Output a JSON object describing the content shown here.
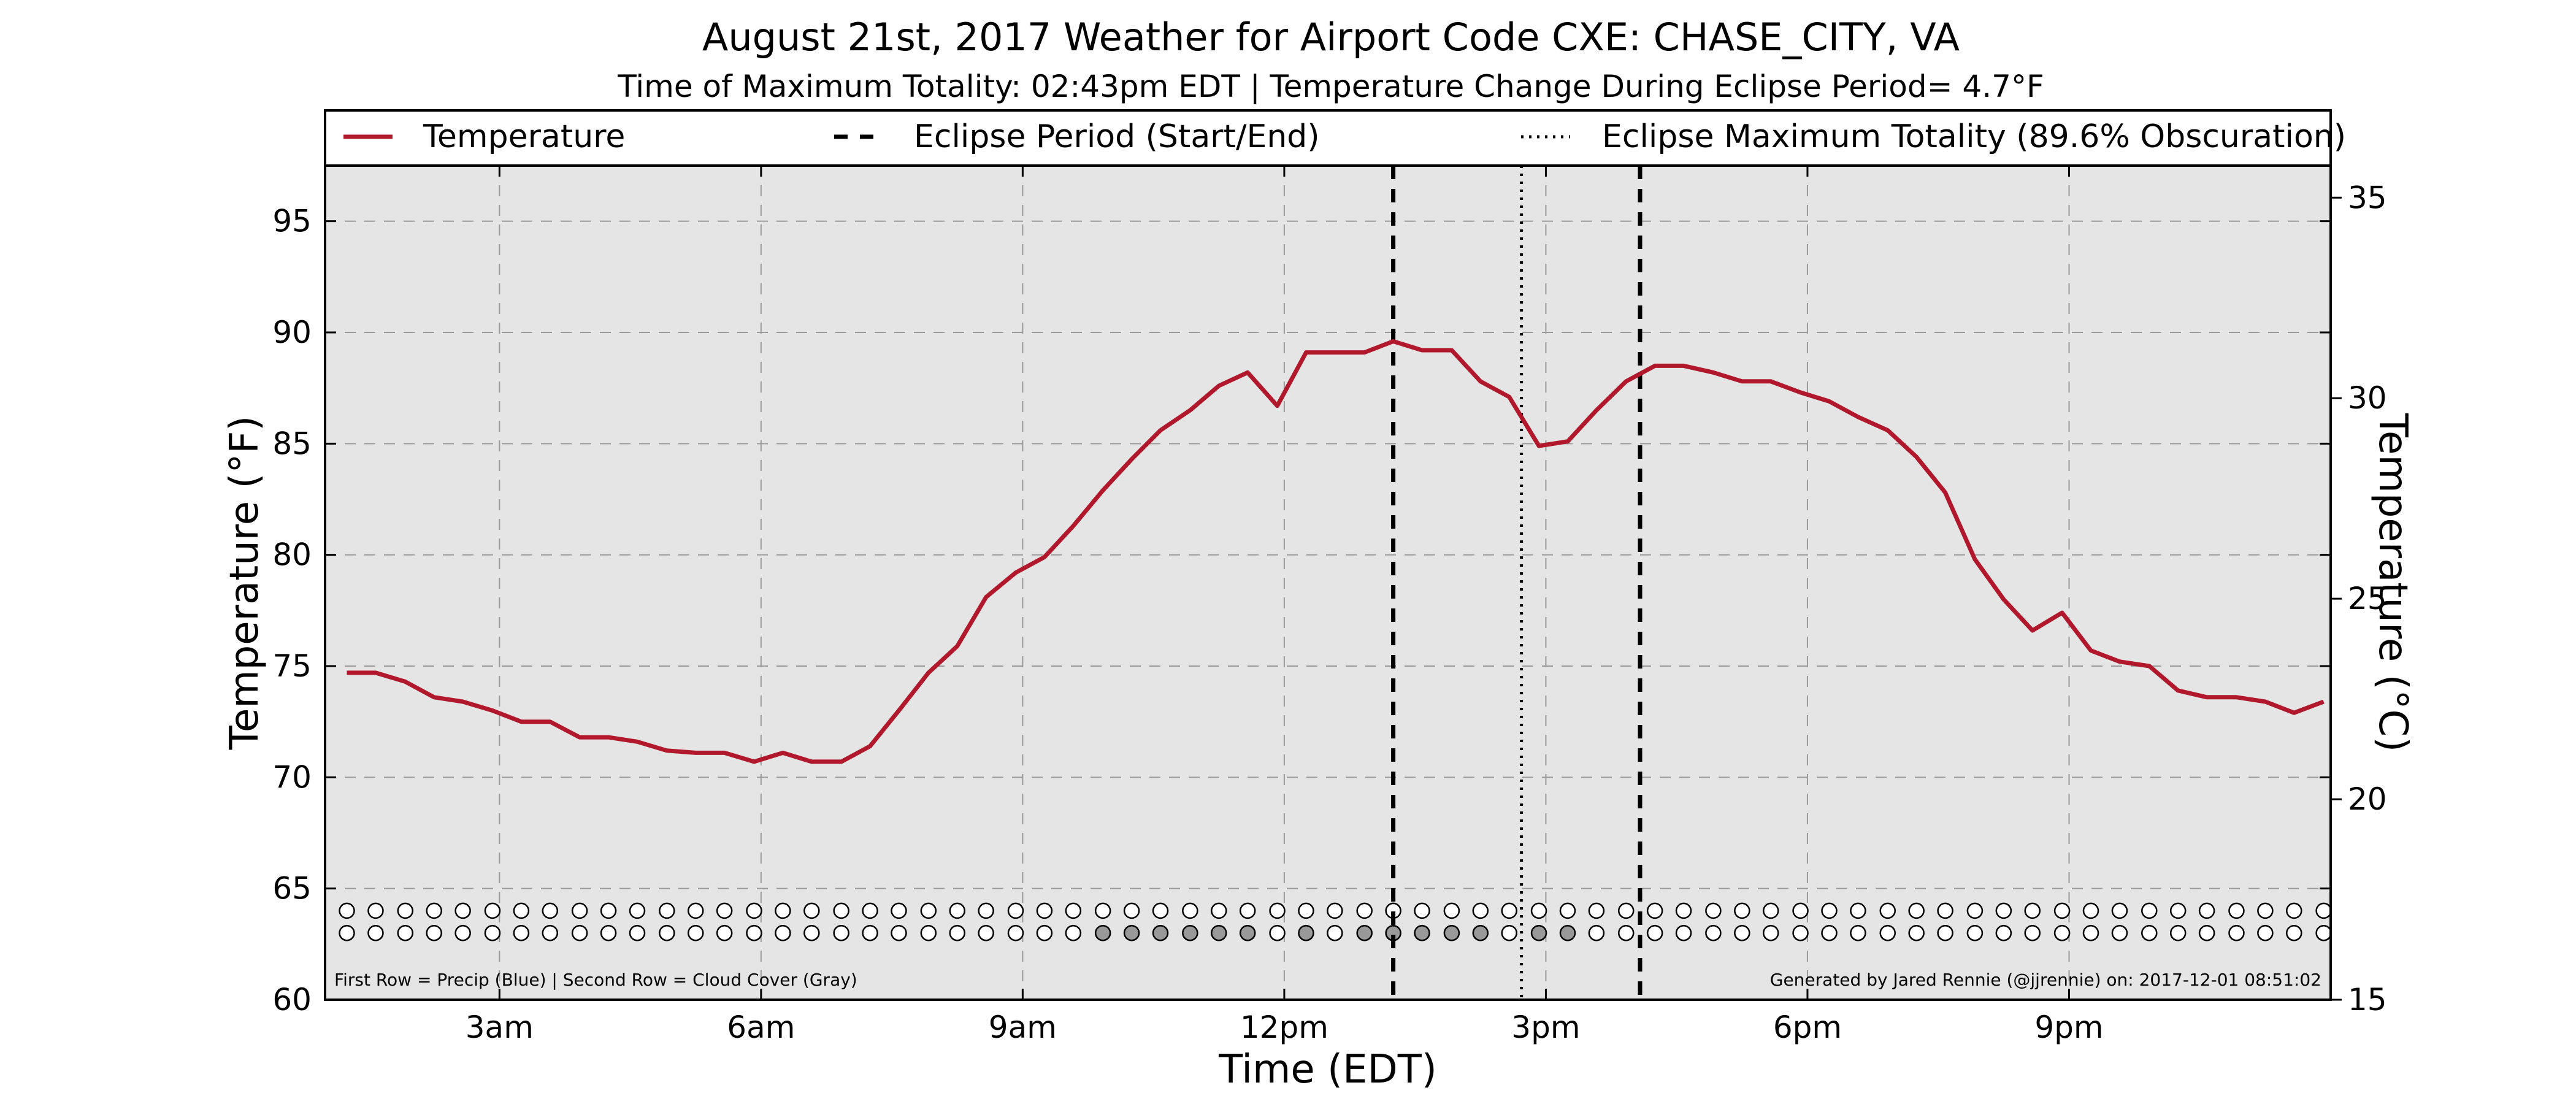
{
  "chart_data": {
    "type": "line",
    "title": "August 21st, 2017 Weather for Airport Code CXE: CHASE_CITY, VA",
    "subtitle": "Time of Maximum Totality: 02:43pm EDT | Temperature Change During Eclipse Period= 4.7°F",
    "xlabel": "Time (EDT)",
    "ylabel": "Temperature (°F)",
    "ylabel_right": "Temperature (°C)",
    "xlim": [
      1.0,
      24.0
    ],
    "ylim": [
      60,
      97.5
    ],
    "ylim_right": [
      15,
      35.8
    ],
    "grid": true,
    "x_ticks": [
      {
        "x": 3,
        "label": "3am"
      },
      {
        "x": 6,
        "label": "6am"
      },
      {
        "x": 9,
        "label": "9am"
      },
      {
        "x": 12,
        "label": "12pm"
      },
      {
        "x": 15,
        "label": "3pm"
      },
      {
        "x": 18,
        "label": "6pm"
      },
      {
        "x": 21,
        "label": "9pm"
      }
    ],
    "y_ticks": [
      60,
      65,
      70,
      75,
      80,
      85,
      90,
      95
    ],
    "y_ticks_right": [
      15,
      20,
      25,
      30,
      35
    ],
    "legend": {
      "placement": "top",
      "entries": [
        {
          "label": "Temperature",
          "style": "solid"
        },
        {
          "label": "Eclipse Period (Start/End)",
          "style": "dashed"
        },
        {
          "label": "Eclipse Maximum Totality (89.6% Obscuration)",
          "style": "dotted"
        }
      ]
    },
    "series": [
      {
        "name": "Temperature",
        "color": "#b2182b",
        "x": [
          1.25,
          1.58,
          1.92,
          2.25,
          2.58,
          2.92,
          3.25,
          3.58,
          3.92,
          4.25,
          4.58,
          4.92,
          5.25,
          5.58,
          5.92,
          6.25,
          6.58,
          6.92,
          7.25,
          7.58,
          7.92,
          8.25,
          8.58,
          8.92,
          9.25,
          9.58,
          9.92,
          10.25,
          10.58,
          10.92,
          11.25,
          11.58,
          11.92,
          12.25,
          12.58,
          12.92,
          13.25,
          13.58,
          13.92,
          14.25,
          14.58,
          14.92,
          15.25,
          15.58,
          15.92,
          16.25,
          16.58,
          16.92,
          17.25,
          17.58,
          17.92,
          18.25,
          18.58,
          18.92,
          19.25,
          19.58,
          19.92,
          20.25,
          20.58,
          20.92,
          21.25,
          21.58,
          21.92,
          22.25,
          22.58,
          22.92,
          23.25,
          23.58,
          23.92
        ],
        "y": [
          74.7,
          74.7,
          74.3,
          73.6,
          73.4,
          73.0,
          72.5,
          72.5,
          71.8,
          71.8,
          71.6,
          71.2,
          71.1,
          71.1,
          70.7,
          71.1,
          70.7,
          70.7,
          71.4,
          73.0,
          74.7,
          75.9,
          78.1,
          79.2,
          79.9,
          81.3,
          82.9,
          84.3,
          85.6,
          86.5,
          87.6,
          88.2,
          86.7,
          89.1,
          89.1,
          89.1,
          89.6,
          89.2,
          89.2,
          87.8,
          87.1,
          84.9,
          85.1,
          86.5,
          87.8,
          88.5,
          88.5,
          88.2,
          87.8,
          87.8,
          87.3,
          86.9,
          86.2,
          85.6,
          84.4,
          82.8,
          79.8,
          78.0,
          76.6,
          77.4,
          75.7,
          75.2,
          75.0,
          73.9,
          73.6,
          73.6,
          73.4,
          72.9,
          73.4
        ]
      }
    ],
    "eclipse_start": 13.25,
    "eclipse_max": 14.72,
    "eclipse_end": 16.08,
    "marker_rows": {
      "count": 69,
      "precip_row": {
        "y": 64,
        "fill": "#ffffff"
      },
      "cloud_row": {
        "y": 63,
        "fill_clear": "#ffffff",
        "fill_cloud": "#999999",
        "cloudy_indices": [
          26,
          27,
          28,
          29,
          30,
          31,
          33,
          35,
          36,
          37,
          38,
          39,
          41,
          42
        ]
      }
    },
    "footnote_left": "First Row = Precip (Blue) | Second Row = Cloud Cover (Gray)",
    "footnote_right": "Generated by Jared Rennie (@jjrennie) on: 2017-12-01 08:51:02"
  }
}
